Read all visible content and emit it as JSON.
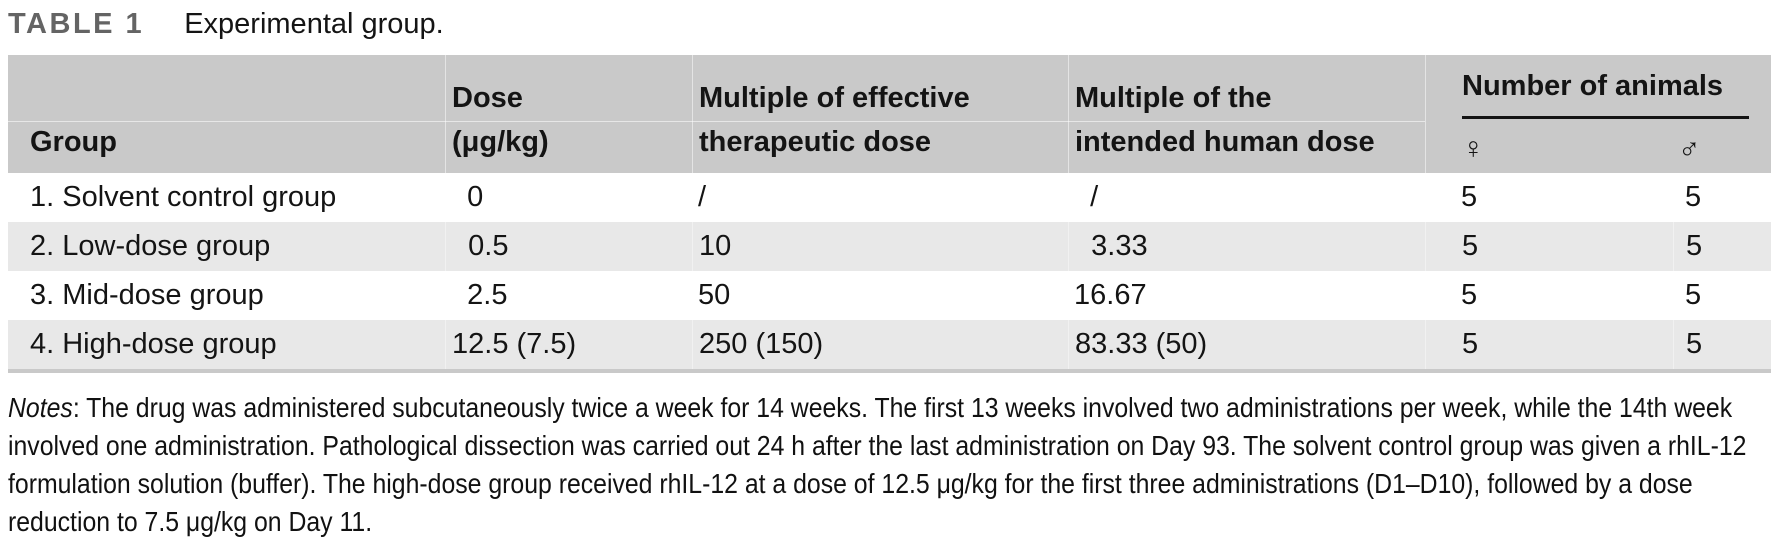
{
  "title": {
    "label": "TABLE 1",
    "caption": "Experimental group."
  },
  "colors": {
    "header_bg": "#c9c9c9",
    "row_alt_bg": "#e8e8e8",
    "table_rule": "#c9c9c9",
    "title_label": "#646464",
    "text": "#141414"
  },
  "table": {
    "header": {
      "group": "Group",
      "dose": [
        "Dose",
        "(μg/kg)"
      ],
      "effective": [
        "Multiple of effective",
        "therapeutic dose"
      ],
      "human": [
        "Multiple of the",
        "intended human dose"
      ],
      "animals": "Number of animals",
      "female_symbol": "♀",
      "male_symbol": "♂"
    },
    "rows": [
      {
        "group": "1. Solvent control group",
        "dose": " 0",
        "effective": "/",
        "human": " /",
        "female": "5",
        "male": "5"
      },
      {
        "group": "2. Low-dose group",
        "dose": " 0.5",
        "effective": "10",
        "human": " 3.33",
        "female": "5",
        "male": "5"
      },
      {
        "group": "3. Mid-dose group",
        "dose": " 2.5",
        "effective": "50",
        "human": "16.67",
        "female": "5",
        "male": "5"
      },
      {
        "group": "4. High-dose group",
        "dose": "12.5 (7.5)",
        "effective": "250 (150)",
        "human": "83.33 (50)",
        "female": "5",
        "male": "5"
      }
    ]
  },
  "notes": {
    "label": "Notes",
    "text": ": The drug was administered subcutaneously twice a week for 14 weeks. The first 13 weeks involved two administrations per week, while the 14th week involved one administration. Pathological dissection was carried out 24 h after the last administration on Day 93. The solvent control group was given a rhIL-12 formulation solution (buffer). The high-dose group received rhIL-12 at a dose of 12.5 μg/kg for the first three administrations (D1–D10), followed by a dose reduction to 7.5 μg/kg on Day 11."
  }
}
